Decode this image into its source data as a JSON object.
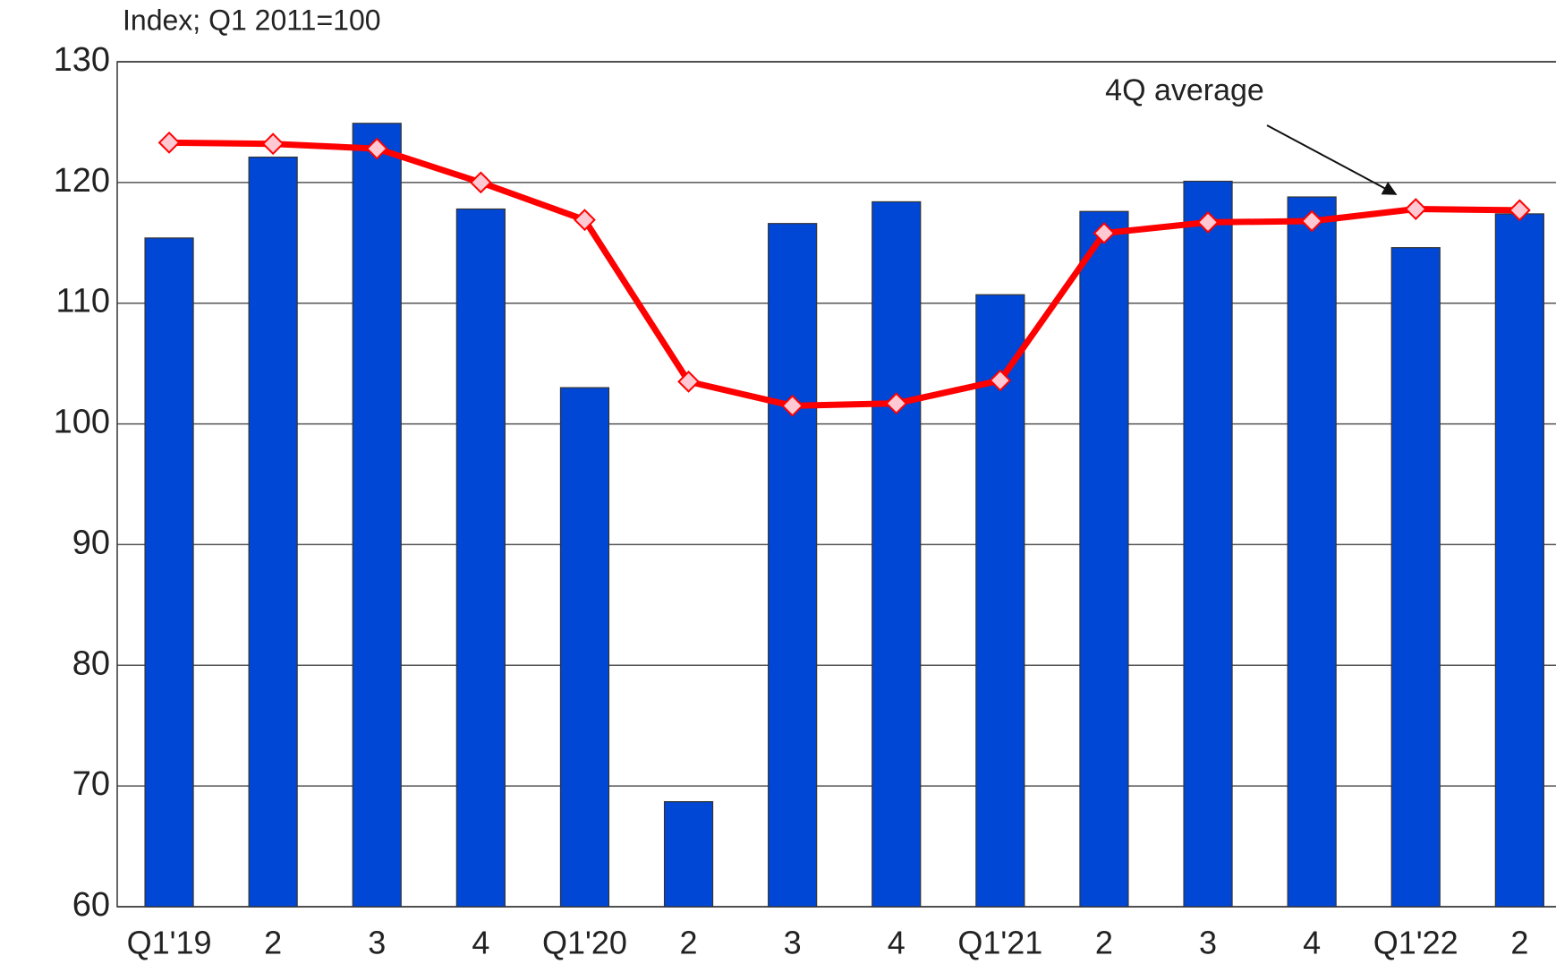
{
  "chart_data": {
    "type": "bar",
    "subtitle": "Index; Q1 2011=100",
    "annotation": "4Q average",
    "categories": [
      "Q1'19",
      "2",
      "3",
      "4",
      "Q1'20",
      "2",
      "3",
      "4",
      "Q1'21",
      "2",
      "3",
      "4",
      "Q1'22",
      "2"
    ],
    "series": [
      {
        "type": "bar",
        "color": "#0047d6",
        "values": [
          115.4,
          122.1,
          124.9,
          117.8,
          103.0,
          68.7,
          116.6,
          118.4,
          110.7,
          117.6,
          120.1,
          118.8,
          114.6,
          117.4
        ]
      },
      {
        "type": "line",
        "color": "#ff0000",
        "marker_color": "#ffc8d2",
        "values": [
          123.3,
          123.2,
          122.8,
          120.0,
          116.9,
          103.5,
          101.5,
          101.7,
          103.6,
          115.8,
          116.7,
          116.8,
          117.8,
          117.7
        ]
      }
    ],
    "ylim": [
      60,
      130
    ],
    "yticks": [
      60,
      70,
      80,
      90,
      100,
      110,
      120,
      130
    ],
    "grid": true
  }
}
